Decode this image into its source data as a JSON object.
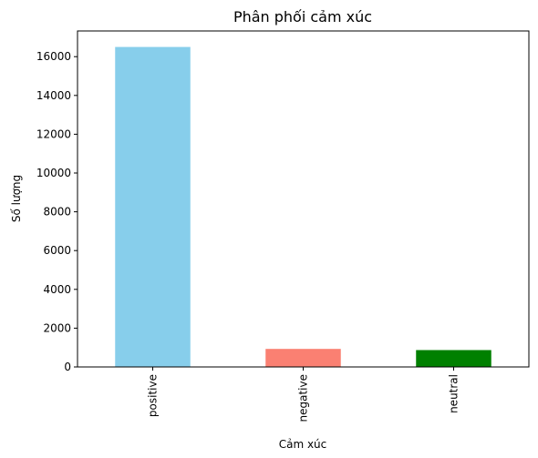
{
  "chart_data": {
    "type": "bar",
    "title": "Phân phối cảm xúc",
    "xlabel": "Cảm xúc",
    "ylabel": "Số lượng",
    "categories": [
      "positive",
      "negative",
      "neutral"
    ],
    "values": [
      16500,
      930,
      870
    ],
    "colors": [
      "#87CEEB",
      "#FA8072",
      "#008000"
    ],
    "ylim": [
      0,
      17325
    ],
    "yticks": [
      0,
      2000,
      4000,
      6000,
      8000,
      10000,
      12000,
      14000,
      16000
    ],
    "grid": false,
    "legend": "none"
  }
}
